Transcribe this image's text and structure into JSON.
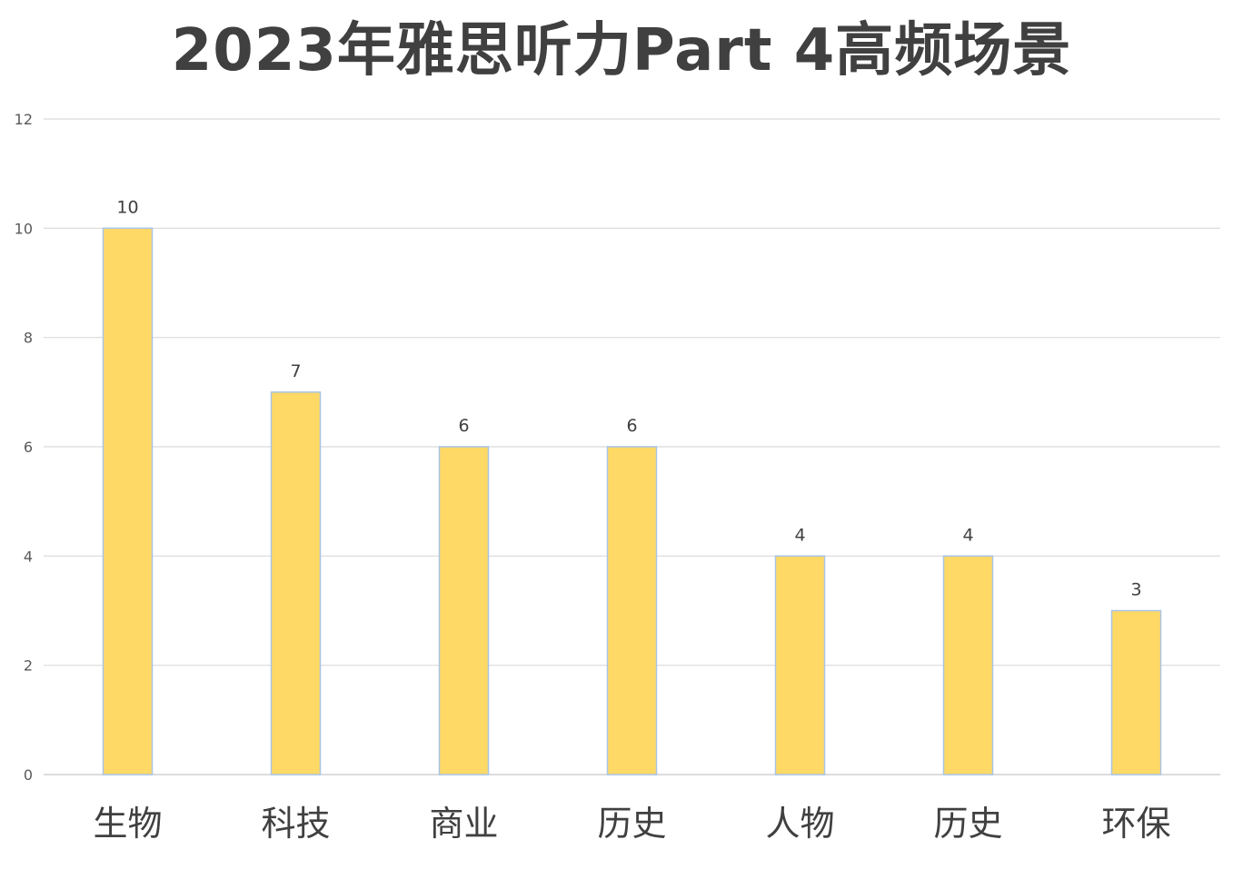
{
  "chart_data": {
    "type": "bar",
    "title": "2023年雅思听力Part 4高频场景",
    "xlabel": "",
    "ylabel": "",
    "categories": [
      "生物",
      "科技",
      "商业",
      "历史",
      "人物",
      "历史",
      "环保"
    ],
    "values": [
      10,
      7,
      6,
      6,
      4,
      4,
      3
    ],
    "ylim": [
      0,
      12
    ],
    "yticks": [
      0,
      2,
      4,
      6,
      8,
      10,
      12
    ],
    "grid": true,
    "legend": "none",
    "data_labels": true,
    "colors": {
      "bar_fill": "#FFD966",
      "bar_stroke": "#A9C4E4",
      "grid": "#D9D9D9"
    }
  }
}
